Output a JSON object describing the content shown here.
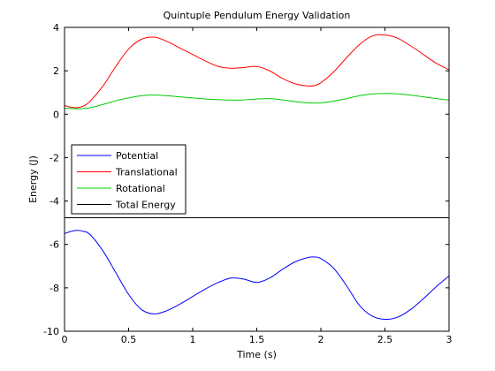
{
  "chart_data": {
    "type": "line",
    "title": "Quintuple Pendulum Energy Validation",
    "xlabel": "Time (s)",
    "ylabel": "Energy (J)",
    "xlim": [
      0,
      3
    ],
    "ylim": [
      -10,
      4
    ],
    "x_ticks": [
      "0",
      "0.5",
      "1",
      "1.5",
      "2",
      "2.5",
      "3"
    ],
    "y_ticks": [
      "-10",
      "-8",
      "-6",
      "-4",
      "-2",
      "0",
      "2",
      "4"
    ],
    "grid": false,
    "legend_position": "lower-left of upper area",
    "series": [
      {
        "name": "Potential",
        "color": "#0000ff",
        "x": [
          0,
          0.05,
          0.1,
          0.15,
          0.2,
          0.3,
          0.4,
          0.5,
          0.6,
          0.7,
          0.8,
          0.9,
          1.0,
          1.1,
          1.2,
          1.3,
          1.4,
          1.5,
          1.6,
          1.7,
          1.8,
          1.9,
          1.95,
          2.0,
          2.1,
          2.2,
          2.3,
          2.4,
          2.5,
          2.6,
          2.7,
          2.8,
          2.9,
          3.0
        ],
        "y": [
          -5.5,
          -5.4,
          -5.35,
          -5.4,
          -5.55,
          -6.3,
          -7.3,
          -8.3,
          -9.0,
          -9.2,
          -9.05,
          -8.75,
          -8.4,
          -8.05,
          -7.75,
          -7.55,
          -7.6,
          -7.75,
          -7.55,
          -7.15,
          -6.8,
          -6.6,
          -6.58,
          -6.65,
          -7.1,
          -7.9,
          -8.8,
          -9.3,
          -9.45,
          -9.35,
          -9.0,
          -8.5,
          -7.95,
          -7.45
        ]
      },
      {
        "name": "Translational",
        "color": "#ff0000",
        "x": [
          0,
          0.05,
          0.1,
          0.15,
          0.2,
          0.3,
          0.4,
          0.5,
          0.6,
          0.7,
          0.8,
          0.9,
          1.0,
          1.1,
          1.2,
          1.3,
          1.4,
          1.5,
          1.6,
          1.7,
          1.8,
          1.9,
          1.95,
          2.0,
          2.1,
          2.2,
          2.3,
          2.4,
          2.5,
          2.6,
          2.7,
          2.8,
          2.9,
          3.0
        ],
        "y": [
          0.4,
          0.32,
          0.3,
          0.38,
          0.6,
          1.3,
          2.2,
          3.0,
          3.45,
          3.55,
          3.35,
          3.05,
          2.75,
          2.45,
          2.2,
          2.12,
          2.15,
          2.2,
          2.0,
          1.65,
          1.4,
          1.3,
          1.32,
          1.45,
          1.95,
          2.6,
          3.2,
          3.6,
          3.65,
          3.5,
          3.15,
          2.75,
          2.35,
          2.05
        ]
      },
      {
        "name": "Rotational",
        "color": "#00cc00",
        "x": [
          0,
          0.1,
          0.2,
          0.3,
          0.4,
          0.5,
          0.6,
          0.7,
          0.8,
          0.9,
          1.0,
          1.1,
          1.2,
          1.3,
          1.4,
          1.5,
          1.6,
          1.7,
          1.8,
          1.9,
          2.0,
          2.1,
          2.2,
          2.3,
          2.4,
          2.5,
          2.6,
          2.7,
          2.8,
          2.9,
          3.0
        ],
        "y": [
          0.28,
          0.25,
          0.3,
          0.45,
          0.62,
          0.75,
          0.85,
          0.88,
          0.85,
          0.8,
          0.75,
          0.7,
          0.67,
          0.65,
          0.66,
          0.7,
          0.72,
          0.66,
          0.58,
          0.52,
          0.52,
          0.6,
          0.72,
          0.85,
          0.93,
          0.96,
          0.94,
          0.88,
          0.8,
          0.72,
          0.65
        ]
      },
      {
        "name": "Total Energy",
        "color": "#000000",
        "x": [
          0,
          3
        ],
        "y": [
          -4.77,
          -4.77
        ]
      }
    ]
  }
}
